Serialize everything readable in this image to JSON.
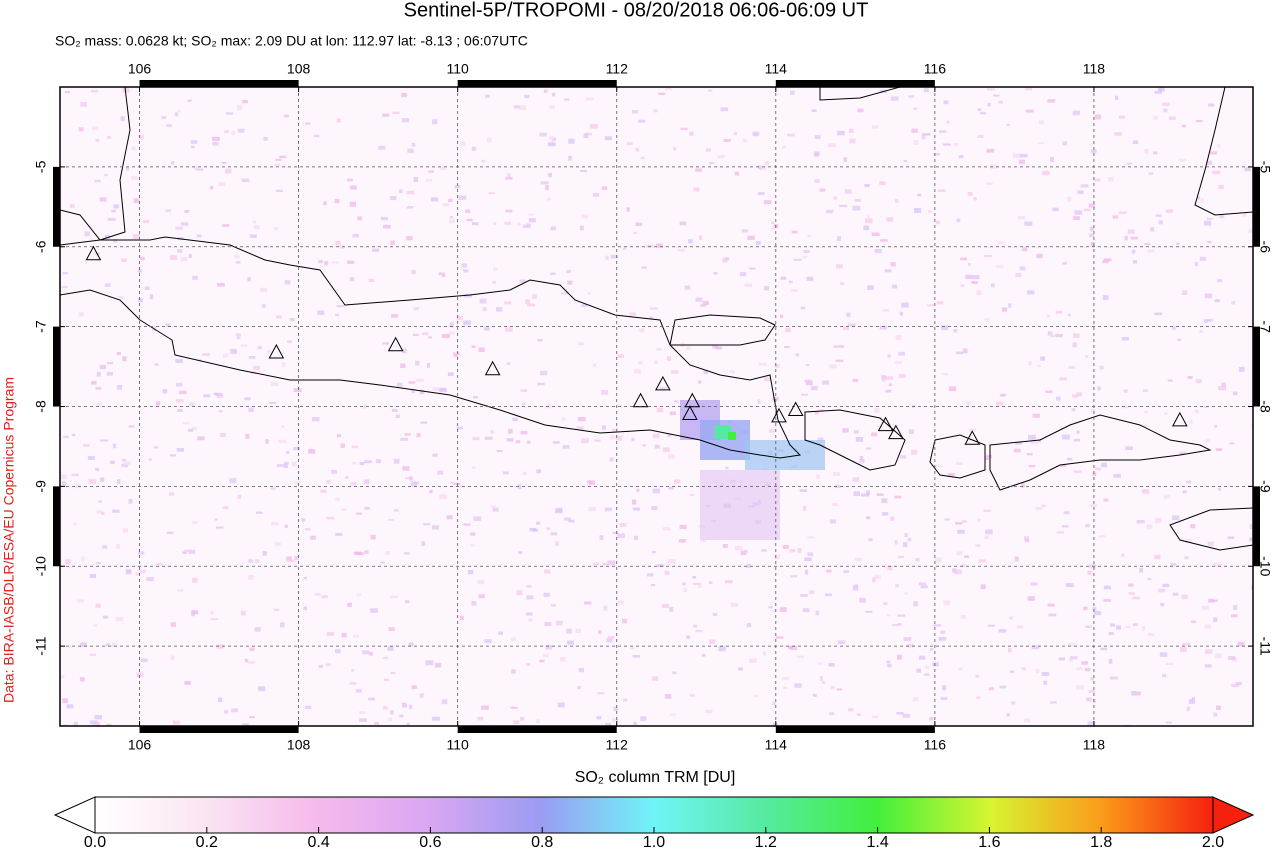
{
  "chart_data": {
    "type": "map",
    "title": "Sentinel-5P/TROPOMI - 08/20/2018 06:06-06:09 UT",
    "subtitle": "SO₂ mass: 0.0628 kt; SO₂ max: 2.09 DU at lon: 112.97 lat: -8.13 ; 06:07UTC",
    "source": "Data: BIRA-IASB/DLR/ESA/EU Copernicus Program",
    "xlim": [
      105,
      120
    ],
    "ylim": [
      -12,
      -4
    ],
    "xticks": [
      106,
      108,
      110,
      112,
      114,
      116,
      118
    ],
    "yticks": [
      -11,
      -10,
      -9,
      -8,
      -7,
      -6,
      -5
    ],
    "grid": true,
    "volcano_lon": [
      105.42,
      107.72,
      109.22,
      110.44,
      112.3,
      112.58,
      112.95,
      112.92,
      114.04,
      114.25,
      115.38,
      115.51,
      116.47,
      119.08
    ],
    "volcano_lat": [
      -6.1,
      -7.33,
      -7.24,
      -7.54,
      -7.94,
      -7.73,
      -7.94,
      -8.1,
      -8.13,
      -8.05,
      -8.24,
      -8.34,
      -8.41,
      -8.18
    ],
    "colorbar": {
      "label": "SO₂ column TRM [DU]",
      "lim": [
        0,
        2
      ],
      "ticks": [
        {
          "value": 0,
          "label": "0.0"
        },
        {
          "value": 0.2,
          "label": "0.2"
        },
        {
          "value": 0.4,
          "label": "0.4"
        },
        {
          "value": 0.6,
          "label": "0.6"
        },
        {
          "value": 0.8,
          "label": "0.8"
        },
        {
          "value": 1,
          "label": "1.0"
        },
        {
          "value": 1.2,
          "label": "1.2"
        },
        {
          "value": 1.4,
          "label": "1.4"
        },
        {
          "value": 1.6,
          "label": "1.6"
        },
        {
          "value": 1.8,
          "label": "1.8"
        },
        {
          "value": 2,
          "label": "2.0"
        }
      ]
    }
  }
}
